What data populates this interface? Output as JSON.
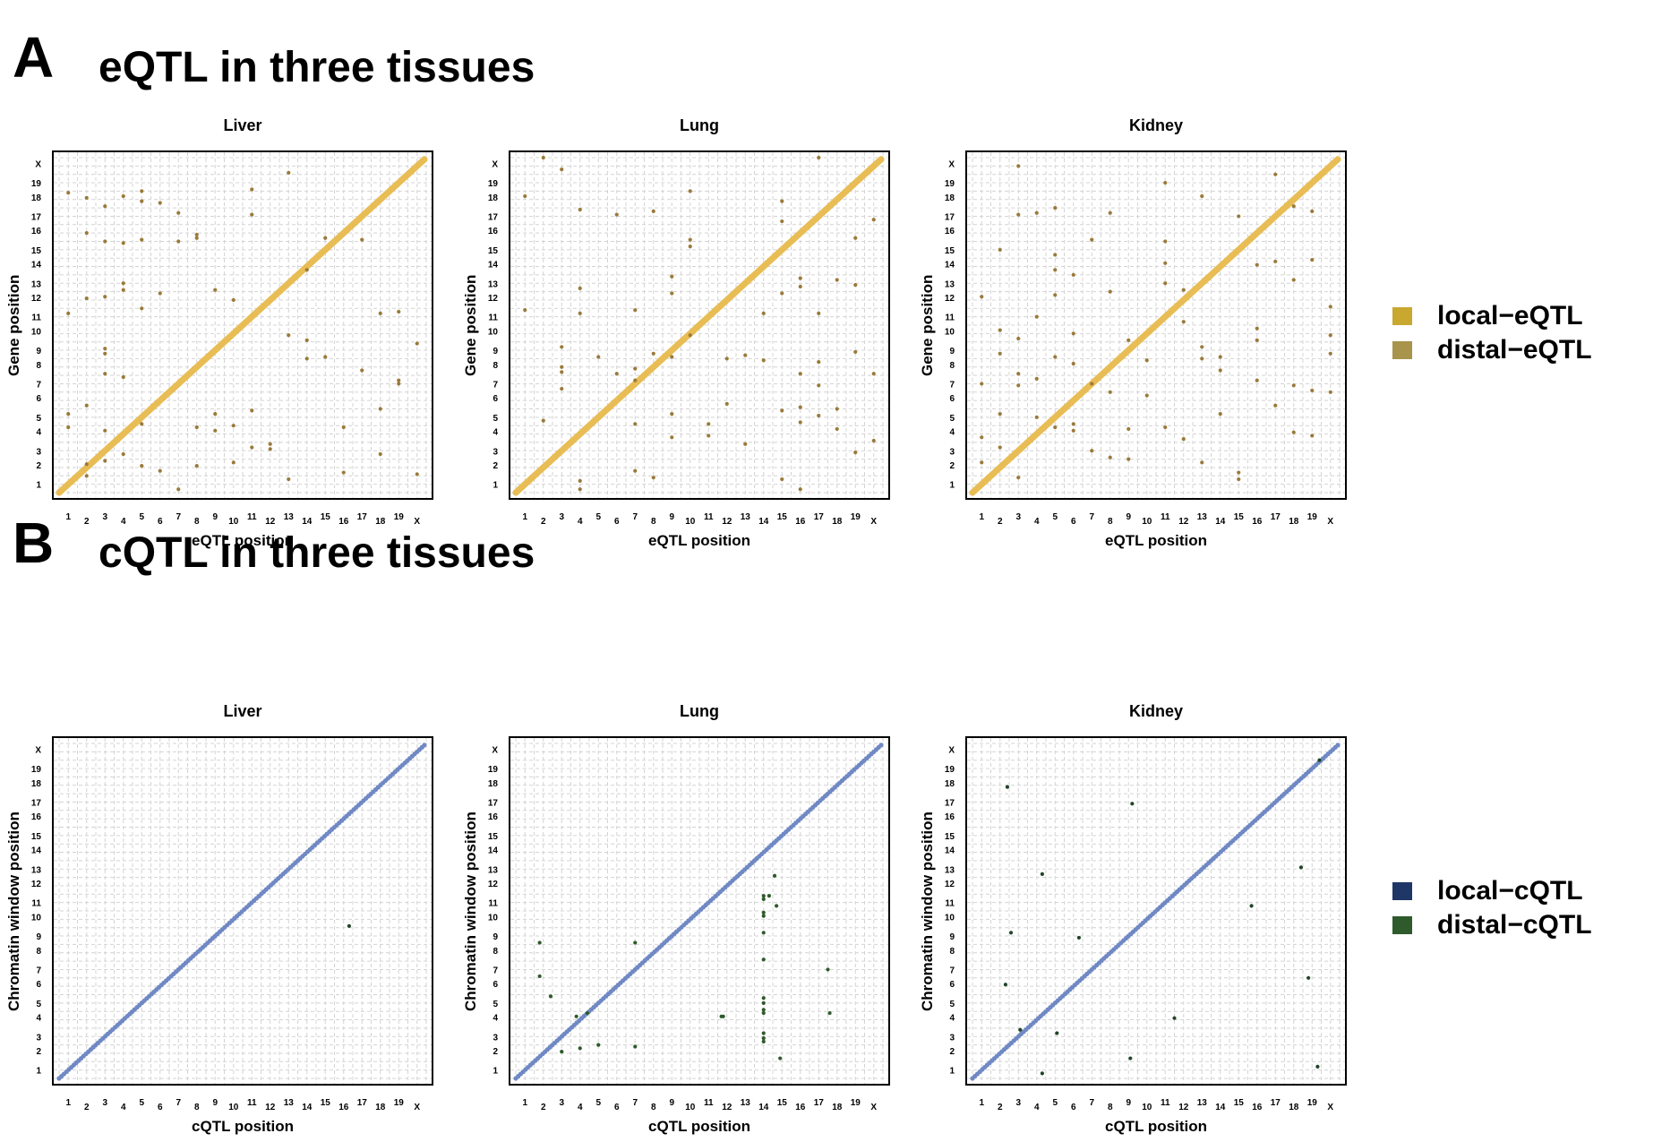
{
  "sections": {
    "A": {
      "letter": "A",
      "title": "eQTL in three tissues"
    },
    "B": {
      "letter": "B",
      "title": "cQTL in three tissues"
    }
  },
  "legend_eqtl": [
    {
      "label": "local−eQTL",
      "color": "#c9a830"
    },
    {
      "label": "distal−eQTL",
      "color": "#a8944a"
    }
  ],
  "legend_cqtl": [
    {
      "label": "local−cQTL",
      "color": "#1f3766"
    },
    {
      "label": "distal−cQTL",
      "color": "#2f5a2c"
    }
  ],
  "chart_data": [
    {
      "type": "scatter",
      "id": "eqtl-liver",
      "title": "Liver",
      "xlabel": "eQTL position",
      "ylabel": "Gene position",
      "categories": [
        "1",
        "2",
        "3",
        "4",
        "5",
        "6",
        "7",
        "8",
        "9",
        "10",
        "11",
        "12",
        "13",
        "14",
        "15",
        "16",
        "17",
        "18",
        "19",
        "X"
      ],
      "local_color": "#e8bd55",
      "distal_color": "#9a7a3a",
      "distal": [
        [
          1,
          18.4
        ],
        [
          1,
          11.2
        ],
        [
          1,
          5.2
        ],
        [
          1,
          4.4
        ],
        [
          2,
          18.1
        ],
        [
          2,
          16
        ],
        [
          2,
          12.1
        ],
        [
          2,
          5.7
        ],
        [
          2,
          2.2
        ],
        [
          2,
          1.5
        ],
        [
          3,
          17.6
        ],
        [
          3,
          15.5
        ],
        [
          3,
          12.2
        ],
        [
          3,
          9.1
        ],
        [
          3,
          8.8
        ],
        [
          3,
          7.6
        ],
        [
          3,
          4.2
        ],
        [
          3,
          2.4
        ],
        [
          4,
          18.2
        ],
        [
          4,
          15.4
        ],
        [
          4,
          13
        ],
        [
          4,
          12.6
        ],
        [
          4,
          7.4
        ],
        [
          4,
          2.8
        ],
        [
          5,
          18.5
        ],
        [
          5,
          17.9
        ],
        [
          5,
          15.6
        ],
        [
          5,
          11.5
        ],
        [
          5,
          4.6
        ],
        [
          5,
          2.1
        ],
        [
          6,
          17.8
        ],
        [
          6,
          12.4
        ],
        [
          6,
          1.8
        ],
        [
          7,
          17.2
        ],
        [
          7,
          15.5
        ],
        [
          7,
          0.7
        ],
        [
          8,
          15.7
        ],
        [
          8,
          15.9
        ],
        [
          8,
          4.4
        ],
        [
          8,
          2.1
        ],
        [
          9,
          12.6
        ],
        [
          9,
          5.2
        ],
        [
          9,
          4.2
        ],
        [
          10,
          12
        ],
        [
          10,
          4.5
        ],
        [
          10,
          2.3
        ],
        [
          11,
          18.6
        ],
        [
          11,
          17.1
        ],
        [
          11,
          5.4
        ],
        [
          11,
          3.2
        ],
        [
          12,
          3.1
        ],
        [
          12,
          3.4
        ],
        [
          13,
          19.6
        ],
        [
          13,
          9.9
        ],
        [
          13,
          1.3
        ],
        [
          14,
          13.8
        ],
        [
          14,
          9.6
        ],
        [
          14,
          8.5
        ],
        [
          15,
          8.6
        ],
        [
          15,
          15.7
        ],
        [
          16,
          4.4
        ],
        [
          16,
          1.7
        ],
        [
          17,
          7.8
        ],
        [
          17,
          15.6
        ],
        [
          18,
          11.2
        ],
        [
          18,
          5.5
        ],
        [
          18,
          2.8
        ],
        [
          19,
          11.3
        ],
        [
          19,
          7.2
        ],
        [
          19,
          7
        ],
        [
          20,
          9.4
        ],
        [
          20,
          1.6
        ]
      ]
    },
    {
      "type": "scatter",
      "id": "eqtl-lung",
      "title": "Lung",
      "xlabel": "eQTL position",
      "ylabel": "Gene position",
      "categories": [
        "1",
        "2",
        "3",
        "4",
        "5",
        "6",
        "7",
        "8",
        "9",
        "10",
        "11",
        "12",
        "13",
        "14",
        "15",
        "16",
        "17",
        "18",
        "19",
        "X"
      ],
      "local_color": "#e8bd55",
      "distal_color": "#9a7a3a",
      "distal": [
        [
          1,
          18.2
        ],
        [
          1,
          11.4
        ],
        [
          2,
          20.5
        ],
        [
          2,
          4.8
        ],
        [
          3,
          19.8
        ],
        [
          3,
          9.2
        ],
        [
          3,
          8
        ],
        [
          3,
          7.7
        ],
        [
          3,
          6.7
        ],
        [
          4,
          17.4
        ],
        [
          4,
          12.7
        ],
        [
          4,
          11.2
        ],
        [
          4,
          1.2
        ],
        [
          4,
          0.7
        ],
        [
          5,
          8.6
        ],
        [
          6,
          7.6
        ],
        [
          6,
          17.1
        ],
        [
          7,
          11.4
        ],
        [
          7,
          7.9
        ],
        [
          7,
          7.2
        ],
        [
          7,
          4.6
        ],
        [
          7,
          1.8
        ],
        [
          8,
          17.3
        ],
        [
          8,
          8.8
        ],
        [
          8,
          1.4
        ],
        [
          9,
          13.4
        ],
        [
          9,
          12.4
        ],
        [
          9,
          5.2
        ],
        [
          9,
          3.8
        ],
        [
          9,
          8.6
        ],
        [
          10,
          18.5
        ],
        [
          10,
          15.6
        ],
        [
          10,
          15.2
        ],
        [
          10,
          9.9
        ],
        [
          11,
          4.6
        ],
        [
          11,
          3.9
        ],
        [
          12,
          8.5
        ],
        [
          12,
          5.8
        ],
        [
          13,
          8.7
        ],
        [
          13,
          3.4
        ],
        [
          14,
          11.2
        ],
        [
          14,
          8.4
        ],
        [
          15,
          17.9
        ],
        [
          15,
          16.7
        ],
        [
          15,
          12.4
        ],
        [
          15,
          5.4
        ],
        [
          15,
          1.3
        ],
        [
          16,
          13.3
        ],
        [
          16,
          12.8
        ],
        [
          16,
          5.6
        ],
        [
          16,
          4.7
        ],
        [
          16,
          7.6
        ],
        [
          16,
          0.7
        ],
        [
          17,
          20.5
        ],
        [
          17,
          11.2
        ],
        [
          17,
          8.3
        ],
        [
          17,
          6.9
        ],
        [
          17,
          5.1
        ],
        [
          18,
          13.2
        ],
        [
          18,
          5.5
        ],
        [
          18,
          4.3
        ],
        [
          19,
          15.7
        ],
        [
          19,
          8.9
        ],
        [
          19,
          12.9
        ],
        [
          19,
          2.9
        ],
        [
          20,
          7.6
        ],
        [
          20,
          3.6
        ],
        [
          20,
          16.8
        ]
      ]
    },
    {
      "type": "scatter",
      "id": "eqtl-kidney",
      "title": "Kidney",
      "xlabel": "eQTL position",
      "ylabel": "Gene position",
      "categories": [
        "1",
        "2",
        "3",
        "4",
        "5",
        "6",
        "7",
        "8",
        "9",
        "10",
        "11",
        "12",
        "13",
        "14",
        "15",
        "16",
        "17",
        "18",
        "19",
        "X"
      ],
      "local_color": "#e8bd55",
      "distal_color": "#9a7a3a",
      "distal": [
        [
          1,
          12.2
        ],
        [
          1,
          7
        ],
        [
          1,
          3.8
        ],
        [
          1,
          2.3
        ],
        [
          2,
          15
        ],
        [
          2,
          10.2
        ],
        [
          2,
          8.8
        ],
        [
          2,
          5.2
        ],
        [
          2,
          3.2
        ],
        [
          3,
          20
        ],
        [
          3,
          17.1
        ],
        [
          3,
          9.7
        ],
        [
          3,
          7.6
        ],
        [
          3,
          6.9
        ],
        [
          3,
          1.4
        ],
        [
          4,
          17.2
        ],
        [
          4,
          11
        ],
        [
          4,
          7.3
        ],
        [
          4,
          5
        ],
        [
          5,
          17.5
        ],
        [
          5,
          14.7
        ],
        [
          5,
          13.8
        ],
        [
          5,
          12.3
        ],
        [
          5,
          8.6
        ],
        [
          5,
          4.4
        ],
        [
          6,
          13.5
        ],
        [
          6,
          10
        ],
        [
          6,
          8.2
        ],
        [
          6,
          4.6
        ],
        [
          6,
          4.2
        ],
        [
          7,
          15.6
        ],
        [
          7,
          7
        ],
        [
          7,
          3
        ],
        [
          8,
          17.2
        ],
        [
          8,
          12.5
        ],
        [
          8,
          6.5
        ],
        [
          8,
          2.6
        ],
        [
          9,
          9.6
        ],
        [
          9,
          4.3
        ],
        [
          9,
          2.5
        ],
        [
          10,
          8.4
        ],
        [
          10,
          6.3
        ],
        [
          11,
          19
        ],
        [
          11,
          15.5
        ],
        [
          11,
          14.2
        ],
        [
          11,
          13
        ],
        [
          11,
          4.4
        ],
        [
          12,
          12.6
        ],
        [
          12,
          10.7
        ],
        [
          12,
          3.7
        ],
        [
          13,
          18.2
        ],
        [
          13,
          9.2
        ],
        [
          13,
          8.5
        ],
        [
          13,
          2.3
        ],
        [
          14,
          7.8
        ],
        [
          14,
          5.2
        ],
        [
          14,
          8.6
        ],
        [
          15,
          17
        ],
        [
          15,
          1.7
        ],
        [
          15,
          1.3
        ],
        [
          16,
          14.1
        ],
        [
          16,
          10.3
        ],
        [
          16,
          9.6
        ],
        [
          16,
          7.2
        ],
        [
          17,
          19.5
        ],
        [
          17,
          14.3
        ],
        [
          17,
          5.7
        ],
        [
          18,
          17.6
        ],
        [
          18,
          6.9
        ],
        [
          18,
          4.1
        ],
        [
          18,
          13.2
        ],
        [
          19,
          17.3
        ],
        [
          19,
          14.4
        ],
        [
          19,
          6.6
        ],
        [
          19,
          3.9
        ],
        [
          20,
          11.6
        ],
        [
          20,
          9.9
        ],
        [
          20,
          8.8
        ],
        [
          20,
          6.5
        ]
      ]
    },
    {
      "type": "scatter",
      "id": "cqtl-liver",
      "title": "Liver",
      "xlabel": "cQTL position",
      "ylabel": "Chromatin window position",
      "categories": [
        "1",
        "2",
        "3",
        "4",
        "5",
        "6",
        "7",
        "8",
        "9",
        "10",
        "11",
        "12",
        "13",
        "14",
        "15",
        "16",
        "17",
        "18",
        "19",
        "X"
      ],
      "local_color": "#7089c4",
      "distal_color": "#22442a",
      "distal": [
        [
          16.3,
          9.6
        ]
      ]
    },
    {
      "type": "scatter",
      "id": "cqtl-lung",
      "title": "Lung",
      "xlabel": "cQTL position",
      "ylabel": "Chromatin window position",
      "categories": [
        "1",
        "2",
        "3",
        "4",
        "5",
        "6",
        "7",
        "8",
        "9",
        "10",
        "11",
        "12",
        "13",
        "14",
        "15",
        "16",
        "17",
        "18",
        "19",
        "X"
      ],
      "local_color": "#7089c4",
      "distal_color": "#2e5a2a",
      "distal": [
        [
          1.8,
          8.6
        ],
        [
          1.8,
          6.6
        ],
        [
          2.4,
          5.4
        ],
        [
          3,
          2.1
        ],
        [
          3.8,
          4.2
        ],
        [
          4,
          2.3
        ],
        [
          4.4,
          4.4
        ],
        [
          5,
          2.5
        ],
        [
          7,
          8.6
        ],
        [
          7,
          2.4
        ],
        [
          11.7,
          4.2
        ],
        [
          11.8,
          4.2
        ],
        [
          14,
          11.4
        ],
        [
          14,
          11.2
        ],
        [
          14,
          10.4
        ],
        [
          14,
          10.2
        ],
        [
          14,
          9.2
        ],
        [
          14,
          7.6
        ],
        [
          14,
          5.3
        ],
        [
          14,
          5
        ],
        [
          14,
          4.6
        ],
        [
          14,
          4.4
        ],
        [
          14,
          3.2
        ],
        [
          14,
          2.9
        ],
        [
          14,
          2.7
        ],
        [
          14.3,
          11.4
        ],
        [
          14.6,
          12.6
        ],
        [
          14.7,
          10.8
        ],
        [
          14.9,
          1.7
        ],
        [
          17.5,
          7
        ],
        [
          17.6,
          4.4
        ]
      ]
    },
    {
      "type": "scatter",
      "id": "cqtl-kidney",
      "title": "Kidney",
      "xlabel": "cQTL position",
      "ylabel": "Chromatin window position",
      "categories": [
        "1",
        "2",
        "3",
        "4",
        "5",
        "6",
        "7",
        "8",
        "9",
        "10",
        "11",
        "12",
        "13",
        "14",
        "15",
        "16",
        "17",
        "18",
        "19",
        "X"
      ],
      "local_color": "#7089c4",
      "distal_color": "#22442a",
      "distal": [
        [
          2.4,
          17.9
        ],
        [
          2.6,
          9.2
        ],
        [
          2.3,
          6.1
        ],
        [
          3.1,
          3.4
        ],
        [
          4.3,
          12.7
        ],
        [
          4.3,
          0.8
        ],
        [
          5.1,
          3.2
        ],
        [
          6.3,
          8.9
        ],
        [
          9.2,
          16.9
        ],
        [
          9.1,
          1.7
        ],
        [
          11.5,
          4.1
        ],
        [
          15.7,
          10.8
        ],
        [
          18.4,
          13.1
        ],
        [
          18.8,
          6.5
        ],
        [
          19.3,
          1.2
        ],
        [
          19.4,
          19.5
        ]
      ]
    }
  ]
}
